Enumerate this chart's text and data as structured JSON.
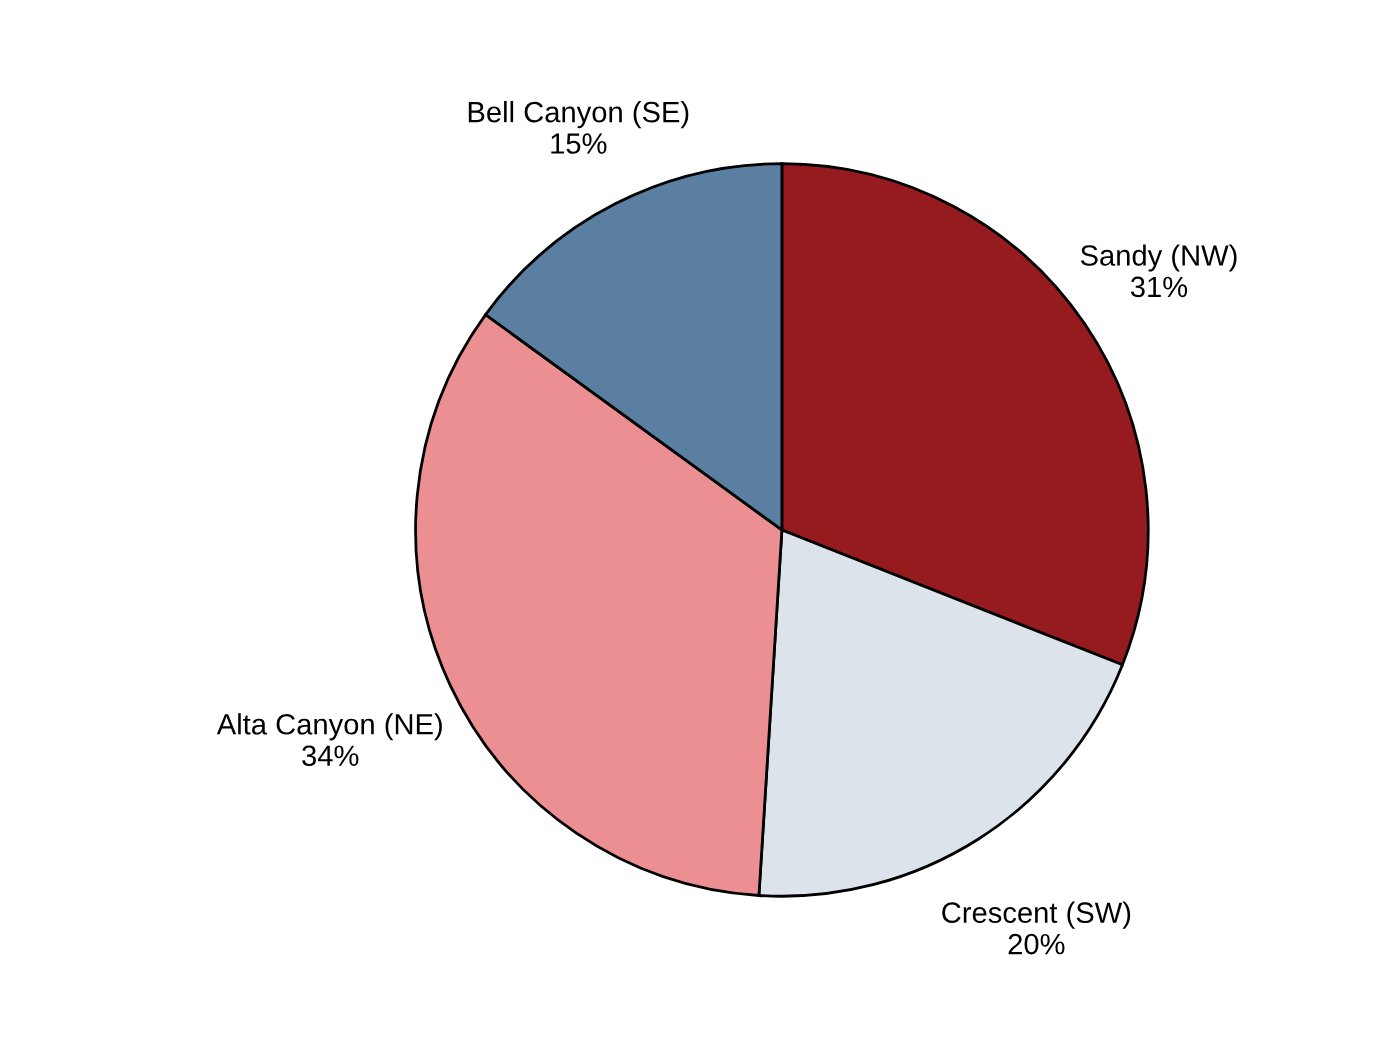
{
  "chart_data": {
    "type": "pie",
    "categories": [
      "Sandy (NW)",
      "Crescent (SW)",
      "Alta Canyon (NE)",
      "Bell Canyon (SE)"
    ],
    "values": [
      31,
      20,
      34,
      15
    ],
    "colors": [
      "#961b1f",
      "#dce3ea",
      "#eb8f92",
      "#5b7fa0"
    ],
    "value_labels": [
      "31%",
      "20%",
      "34%",
      "15%"
    ]
  }
}
